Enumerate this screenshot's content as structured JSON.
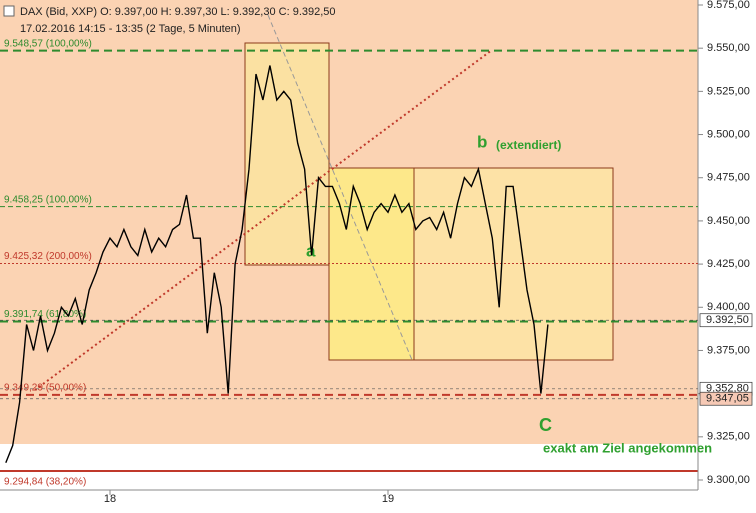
{
  "chart_data": {
    "type": "line",
    "header": "DAX (Bid, XXP)  O: 9.397,00  H: 9.397,30  L: 9.392,30  C: 9.392,50",
    "subheader": "17.02.2016 14:15 - 13:35 (2 Tage, 5 Minuten)",
    "categories": [
      null,
      null,
      null,
      null,
      null,
      null,
      null,
      null,
      null,
      null,
      null,
      null,
      null,
      null,
      null,
      "18",
      null,
      null,
      null,
      null,
      null,
      null,
      null,
      null,
      null,
      null,
      null,
      null,
      null,
      null,
      null,
      null,
      null,
      null,
      null,
      null,
      null,
      null,
      null,
      null,
      null,
      null,
      null,
      null,
      null,
      null,
      null,
      null,
      null,
      null,
      null,
      null,
      null,
      null,
      null,
      "19",
      null,
      null,
      null,
      null,
      null,
      null,
      null,
      null,
      null,
      null,
      null,
      null,
      null,
      null,
      null,
      null,
      null,
      null,
      null,
      null,
      null,
      null,
      null
    ],
    "series": [
      {
        "name": "DAX",
        "color": "#000000",
        "values": [
          9310,
          9320,
          9345,
          9390,
          9375,
          9395,
          9375,
          9385,
          9400,
          9395,
          9405,
          9390,
          9410,
          9420,
          9432,
          9440,
          9435,
          9445,
          9435,
          9430,
          9445,
          9432,
          9440,
          9435,
          9445,
          9448,
          9465,
          9440,
          9440,
          9385,
          9420,
          9400,
          9350,
          9425,
          9445,
          9480,
          9535,
          9520,
          9540,
          9520,
          9525,
          9520,
          9495,
          9480,
          9430,
          9475,
          9470,
          9470,
          9460,
          9445,
          9470,
          9460,
          9445,
          9455,
          9460,
          9455,
          9465,
          9455,
          9460,
          9445,
          9450,
          9452,
          9445,
          9455,
          9440,
          9460,
          9475,
          9470,
          9480,
          9460,
          9440,
          9400,
          9470,
          9470,
          9440,
          9410,
          9390,
          9350,
          9390
        ]
      }
    ],
    "ylim": [
      9300,
      9575
    ],
    "yticks": [
      {
        "value": 9300,
        "label": "9.300,00"
      },
      {
        "value": 9325,
        "label": "9.325,00"
      },
      {
        "value": 9350,
        "label": "9.350,00"
      },
      {
        "value": 9375,
        "label": "9.375,00"
      },
      {
        "value": 9400,
        "label": "9.400,00"
      },
      {
        "value": 9425,
        "label": "9.425,00"
      },
      {
        "value": 9450,
        "label": "9.450,00"
      },
      {
        "value": 9475,
        "label": "9.475,00"
      },
      {
        "value": 9500,
        "label": "9.500,00"
      },
      {
        "value": 9525,
        "label": "9.525,00"
      },
      {
        "value": 9550,
        "label": "9.550,00"
      },
      {
        "value": 9575,
        "label": "9.575,00"
      }
    ],
    "levels": [
      {
        "value": 9548.57,
        "label": "9.548,57 (100,00%)",
        "color": "#2e8b2e",
        "width": 2,
        "dash": "8 5"
      },
      {
        "value": 9458.25,
        "label": "9.458,25 (100,00%)",
        "color": "#2e8b2e",
        "width": 1,
        "dash": "5 3"
      },
      {
        "value": 9425.32,
        "label": "9.425,32 (200,00%)",
        "color": "#c0392b",
        "width": 1,
        "dash": "2 2"
      },
      {
        "value": 9391.74,
        "label": "9.391,74 (61,80%)",
        "color": "#2e8b2e",
        "width": 2,
        "dash": "8 5"
      },
      {
        "value": 9349.29,
        "label": "9.349,29 (50,00%)",
        "color": "#c0392b",
        "width": 2,
        "dash": "8 5"
      },
      {
        "value": 9294.84,
        "label": "9.294,84 (38,20%)",
        "color": "#c0392b",
        "width": 0,
        "dash": "0"
      }
    ],
    "price_tags": [
      {
        "value": 9392.5,
        "label": "9.392,50",
        "color": "#ffffff"
      },
      {
        "value": 9352.8,
        "label": "9.352,80",
        "color": "#ffffff"
      },
      {
        "value": 9347.05,
        "label": "9.347,05",
        "color": "#f6c9b5"
      }
    ],
    "annotations": [
      "a",
      "b",
      "(extendiert)",
      "C",
      "exakt am Ziel angekommen"
    ]
  }
}
